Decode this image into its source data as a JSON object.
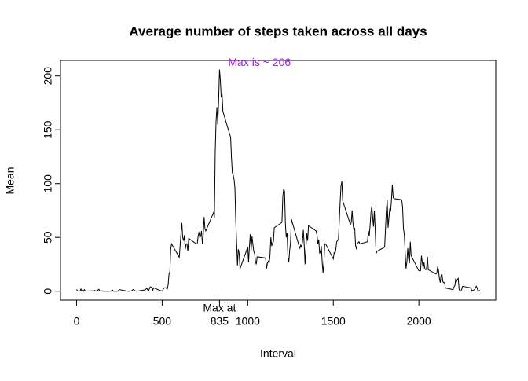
{
  "chart_data": {
    "type": "line",
    "title": "Average number of steps taken across all days",
    "xlabel": "Interval",
    "ylabel": "Mean",
    "color": "#000000",
    "annotation": "Max is ~ 206",
    "annotation_color": "#a020f0",
    "max_label": "Max at",
    "x": [
      0,
      5,
      10,
      15,
      20,
      25,
      30,
      35,
      40,
      45,
      50,
      55,
      100,
      105,
      110,
      115,
      120,
      125,
      130,
      135,
      140,
      145,
      150,
      155,
      200,
      210,
      215,
      220,
      230,
      240,
      250,
      300,
      310,
      320,
      330,
      340,
      350,
      400,
      410,
      420,
      430,
      440,
      445,
      450,
      500,
      510,
      520,
      530,
      535,
      540,
      545,
      550,
      555,
      600,
      610,
      615,
      620,
      625,
      630,
      635,
      640,
      645,
      650,
      655,
      700,
      705,
      710,
      715,
      720,
      725,
      730,
      735,
      740,
      745,
      750,
      755,
      800,
      805,
      810,
      815,
      820,
      825,
      830,
      835,
      840,
      845,
      850,
      855,
      900,
      905,
      910,
      915,
      920,
      925,
      930,
      935,
      940,
      945,
      950,
      955,
      1000,
      1005,
      1010,
      1015,
      1020,
      1025,
      1030,
      1035,
      1040,
      1045,
      1050,
      1055,
      1100,
      1105,
      1110,
      1115,
      1120,
      1125,
      1130,
      1135,
      1140,
      1145,
      1150,
      1155,
      1200,
      1205,
      1210,
      1215,
      1220,
      1225,
      1230,
      1235,
      1240,
      1245,
      1250,
      1255,
      1300,
      1305,
      1310,
      1315,
      1320,
      1325,
      1330,
      1335,
      1340,
      1345,
      1350,
      1355,
      1400,
      1405,
      1410,
      1415,
      1420,
      1425,
      1430,
      1435,
      1440,
      1445,
      1450,
      1455,
      1500,
      1505,
      1510,
      1515,
      1520,
      1525,
      1530,
      1535,
      1540,
      1545,
      1550,
      1555,
      1600,
      1605,
      1610,
      1615,
      1620,
      1625,
      1630,
      1635,
      1640,
      1645,
      1650,
      1655,
      1700,
      1705,
      1710,
      1715,
      1720,
      1725,
      1730,
      1735,
      1740,
      1745,
      1750,
      1755,
      1800,
      1805,
      1810,
      1815,
      1820,
      1825,
      1830,
      1835,
      1840,
      1845,
      1850,
      1855,
      1900,
      1905,
      1910,
      1915,
      1920,
      1925,
      1930,
      1935,
      1940,
      1945,
      1950,
      1955,
      2000,
      2005,
      2010,
      2015,
      2020,
      2025,
      2030,
      2035,
      2040,
      2045,
      2050,
      2055,
      2100,
      2105,
      2110,
      2115,
      2120,
      2125,
      2130,
      2135,
      2140,
      2145,
      2150,
      2155,
      2200,
      2205,
      2210,
      2215,
      2220,
      2225,
      2230,
      2235,
      2240,
      2245,
      2250,
      2255,
      2300,
      2305,
      2310,
      2315,
      2320,
      2325,
      2330,
      2335,
      2340,
      2345,
      2350,
      2355
    ],
    "values": [
      1.7,
      0.3,
      0.1,
      0.2,
      0.1,
      2.1,
      0.5,
      0.9,
      0,
      1.5,
      0.3,
      0.1,
      0.3,
      0.7,
      0.2,
      0.3,
      0,
      1.1,
      1.8,
      0.2,
      0.2,
      0.4,
      0.3,
      0,
      0,
      1.1,
      0,
      0,
      0,
      0,
      1.5,
      0,
      0,
      0.2,
      1.6,
      0.5,
      0,
      1.2,
      2.6,
      0.3,
      4.1,
      3.5,
      0.8,
      3.1,
      0,
      3,
      3.3,
      2.1,
      6,
      16,
      18,
      39,
      44,
      31.5,
      53.8,
      63.5,
      49.9,
      47,
      52,
      39,
      44,
      44,
      37,
      49,
      44,
      44,
      51,
      55,
      50,
      51,
      56,
      44,
      52,
      69,
      58,
      56,
      73,
      68,
      129,
      158,
      171,
      155,
      177,
      206,
      196,
      180,
      183,
      167,
      143,
      124,
      110,
      108,
      104,
      96,
      66,
      45,
      24,
      39,
      35,
      21,
      41,
      27,
      42,
      53,
      38,
      51,
      44,
      37,
      35,
      28,
      25,
      32,
      31,
      30,
      21,
      26,
      28,
      26,
      33,
      50,
      42,
      45,
      46,
      59,
      64,
      88,
      95,
      93,
      63,
      50,
      54,
      32,
      27,
      38,
      45,
      67,
      42,
      40,
      43,
      41,
      46,
      57,
      43,
      25,
      40,
      54,
      47,
      61,
      56,
      52,
      44,
      48,
      35,
      37,
      42,
      27,
      17,
      26,
      44,
      44,
      30,
      36,
      35,
      39,
      46,
      47,
      48,
      65,
      83,
      98,
      102,
      84,
      62,
      64,
      75,
      63,
      57,
      59,
      43,
      39,
      44,
      45,
      46,
      44,
      46,
      56,
      51,
      61,
      73,
      79,
      69,
      60,
      75,
      57,
      35,
      37,
      41,
      58,
      75,
      85,
      59,
      68,
      77,
      74,
      85,
      99,
      87,
      86,
      85,
      78,
      58,
      53,
      36,
      21,
      27,
      40,
      30,
      26,
      46,
      33,
      19,
      19,
      19,
      33,
      27,
      21,
      27,
      21,
      20,
      21,
      32,
      20,
      16,
      17,
      23,
      19,
      12,
      8,
      15,
      16,
      9,
      8,
      8,
      3,
      1.5,
      4,
      5,
      11,
      9,
      11,
      12,
      2,
      0,
      0.1,
      1.6,
      4.6,
      3.3,
      2.8,
      0,
      0.8,
      1,
      1.6,
      2.6,
      4.7,
      3.3,
      0.6,
      0.2,
      1.1
    ],
    "xlim": [
      -94.2,
      2449.2
    ],
    "ylim": [
      -8.25,
      214.4
    ],
    "xticks": [
      0,
      500,
      835,
      1000,
      1500,
      2000
    ],
    "yticks": [
      0,
      50,
      100,
      150,
      200
    ]
  }
}
